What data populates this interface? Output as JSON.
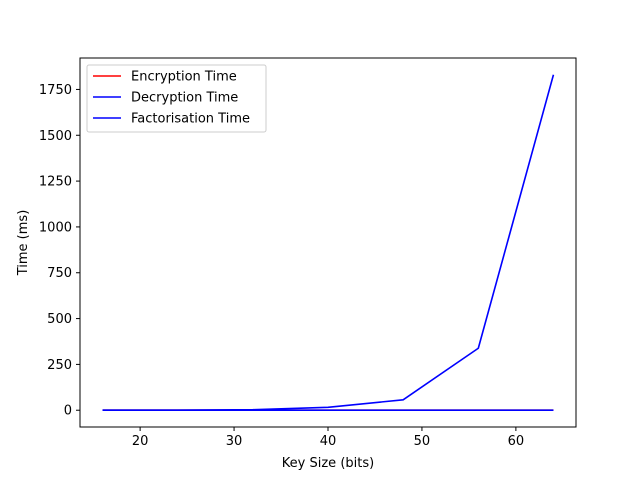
{
  "chart_data": {
    "type": "line",
    "title": "",
    "xlabel": "Key Size (bits)",
    "ylabel": "Time (ms)",
    "xlim": [
      13.6,
      66.4
    ],
    "ylim": [
      -91.5,
      1921.5
    ],
    "xticks": [
      20,
      30,
      40,
      50,
      60
    ],
    "yticks": [
      0,
      250,
      500,
      750,
      1000,
      1250,
      1500,
      1750
    ],
    "grid": false,
    "legend_position": "top-left",
    "x": [
      16,
      24,
      32,
      40,
      48,
      56,
      64
    ],
    "series": [
      {
        "name": "Encryption Time",
        "color": "#ff0000",
        "values": [
          0,
          0,
          0,
          0,
          0,
          0,
          0
        ]
      },
      {
        "name": "Decryption Time",
        "color": "#0000ff",
        "values": [
          0,
          0,
          0,
          0,
          0,
          0,
          0
        ]
      },
      {
        "name": "Factorisation Time",
        "color": "#0000ff",
        "values": [
          0,
          0.5,
          3,
          16,
          57,
          338,
          1830
        ]
      }
    ]
  }
}
